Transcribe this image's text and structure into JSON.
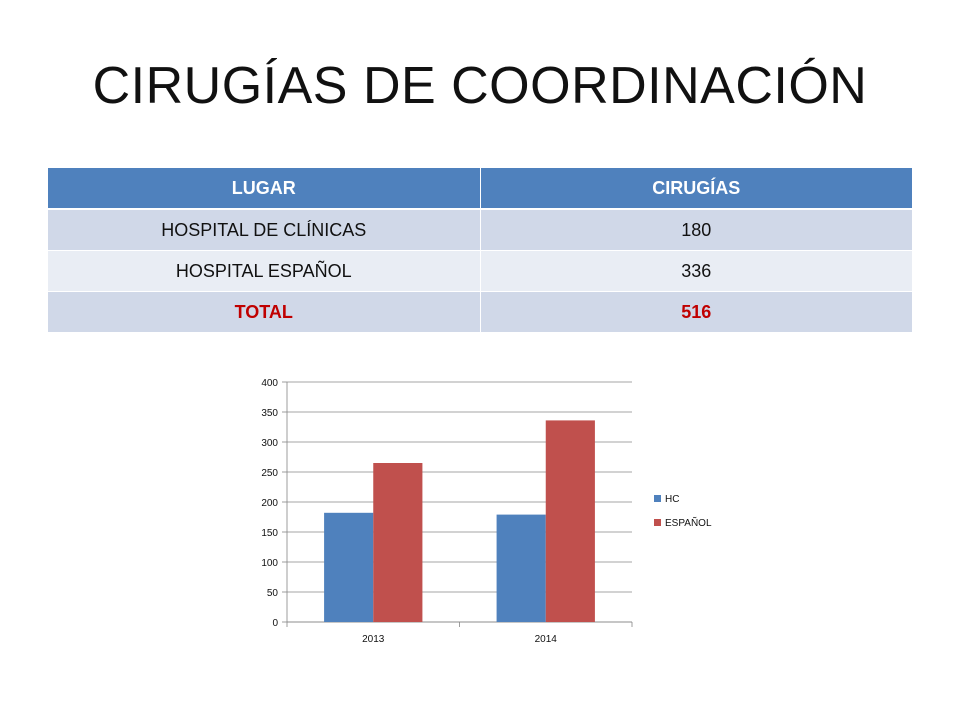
{
  "slide": {
    "title": "CIRUGÍAS DE COORDINACIÓN"
  },
  "table": {
    "headers": [
      "LUGAR",
      "CIRUGÍAS"
    ],
    "rows": [
      {
        "lugar": "HOSPITAL DE CLÍNICAS",
        "cirugias": "180"
      },
      {
        "lugar": "HOSPITAL ESPAÑOL",
        "cirugias": "336"
      }
    ],
    "total": {
      "lugar": "TOTAL",
      "cirugias": "516"
    }
  },
  "chart_data": {
    "type": "bar",
    "categories": [
      "2013",
      "2014"
    ],
    "series": [
      {
        "name": "HC",
        "values": [
          182,
          179
        ],
        "color": "#4f81bd"
      },
      {
        "name": "ESPAÑOL",
        "values": [
          265,
          336
        ],
        "color": "#c0504d"
      }
    ],
    "ylim": [
      0,
      400
    ],
    "yticks": [
      0,
      50,
      100,
      150,
      200,
      250,
      300,
      350,
      400
    ],
    "grid": true,
    "legend": "right"
  }
}
